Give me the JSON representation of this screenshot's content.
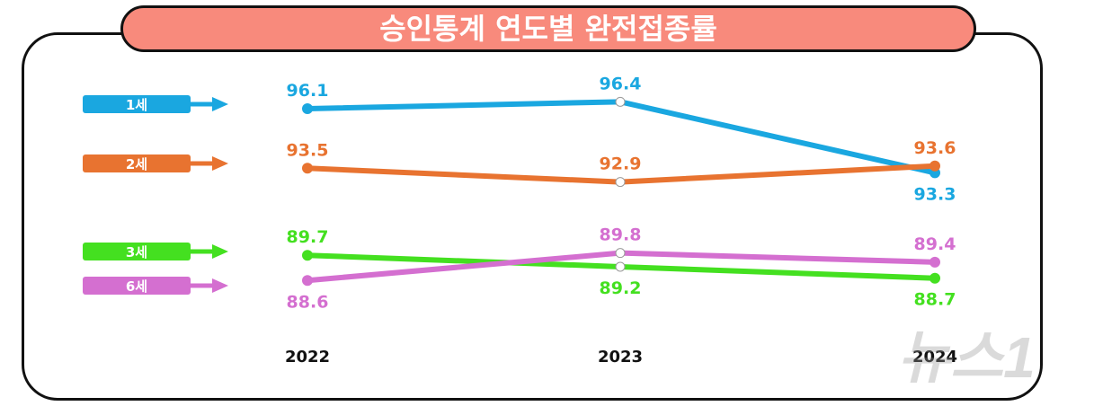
{
  "chart_data": {
    "type": "line",
    "title": "승인통계 연도별 완전접종률",
    "categories": [
      "2022",
      "2023",
      "2024"
    ],
    "series": [
      {
        "name": "1세",
        "color": "#1aa7e0",
        "values": [
          96.1,
          96.4,
          93.3
        ],
        "label_pos": [
          "above",
          "above",
          "below"
        ]
      },
      {
        "name": "2세",
        "color": "#e87330",
        "values": [
          93.5,
          92.9,
          93.6
        ],
        "label_pos": [
          "above",
          "above",
          "above"
        ]
      },
      {
        "name": "3세",
        "color": "#44e020",
        "values": [
          89.7,
          89.2,
          88.7
        ],
        "label_pos": [
          "above",
          "below",
          "below"
        ]
      },
      {
        "name": "6세",
        "color": "#d46fd0",
        "values": [
          88.6,
          89.8,
          89.4
        ],
        "label_pos": [
          "below",
          "above",
          "above"
        ]
      }
    ],
    "grid": false,
    "legend_placement": "left"
  },
  "watermark": "뉴스1"
}
